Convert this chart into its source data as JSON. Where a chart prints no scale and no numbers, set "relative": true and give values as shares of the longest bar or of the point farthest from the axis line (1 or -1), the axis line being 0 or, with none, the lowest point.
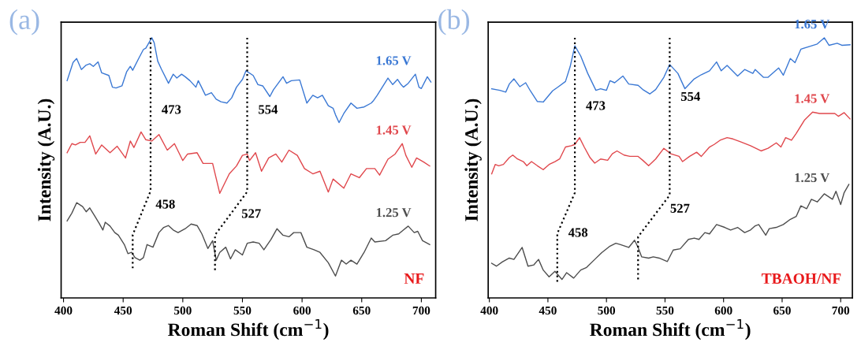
{
  "chart_data": [
    {
      "type": "line",
      "title": "(a)",
      "xlabel": "Roman Shift (cm$^{−1}$)",
      "ylabel": "Intensity (A.U.)",
      "relative": true,
      "xlim": [
        398,
        712
      ],
      "xticks": [
        400,
        450,
        500,
        550,
        600,
        650,
        700
      ],
      "grid": false,
      "legend": false,
      "series": [
        {
          "name": "1.65 V",
          "color": "#3a78d4",
          "x": [
            403,
            408,
            411,
            415,
            419,
            422,
            425,
            429,
            432,
            438,
            441,
            444,
            449,
            453,
            456,
            458,
            463,
            467,
            469,
            474,
            476,
            479,
            482,
            488,
            492,
            495,
            499,
            502,
            506,
            511,
            513,
            519,
            524,
            528,
            532,
            537,
            541,
            545,
            550,
            553,
            559,
            563,
            567,
            573,
            576,
            584,
            587,
            591,
            598,
            604,
            609,
            613,
            617,
            622,
            626,
            628,
            631,
            635,
            641,
            646,
            652,
            658,
            660,
            663,
            672,
            676,
            680,
            683,
            685,
            689,
            695,
            698,
            700,
            705,
            708
          ],
          "values": [
            0.835,
            0.905,
            0.92,
            0.878,
            0.895,
            0.9,
            0.89,
            0.907,
            0.865,
            0.855,
            0.81,
            0.807,
            0.815,
            0.87,
            0.89,
            0.875,
            0.92,
            0.955,
            0.96,
            1.0,
            0.981,
            0.91,
            0.88,
            0.825,
            0.86,
            0.845,
            0.86,
            0.85,
            0.835,
            0.81,
            0.835,
            0.779,
            0.789,
            0.764,
            0.754,
            0.749,
            0.769,
            0.81,
            0.84,
            0.873,
            0.855,
            0.82,
            0.815,
            0.774,
            0.8,
            0.85,
            0.825,
            0.835,
            0.838,
            0.749,
            0.779,
            0.769,
            0.779,
            0.739,
            0.729,
            0.704,
            0.674,
            0.709,
            0.749,
            0.729,
            0.734,
            0.749,
            0.759,
            0.779,
            0.845,
            0.82,
            0.84,
            0.82,
            0.81,
            0.825,
            0.86,
            0.81,
            0.805,
            0.85,
            0.83
          ]
        },
        {
          "name": "1.45 V",
          "color": "#e0474c",
          "x": [
            403,
            407,
            410,
            414,
            418,
            422,
            427,
            432,
            439,
            445,
            452,
            456,
            459,
            465,
            469,
            474,
            480,
            487,
            493,
            500,
            504,
            512,
            517,
            525,
            531,
            539,
            545,
            550,
            554,
            556,
            561,
            566,
            572,
            578,
            583,
            589,
            596,
            602,
            609,
            615,
            622,
            626,
            635,
            641,
            648,
            654,
            661,
            665,
            672,
            678,
            684,
            687,
            692,
            696,
            702,
            707
          ],
          "values": [
            0.558,
            0.593,
            0.588,
            0.598,
            0.598,
            0.623,
            0.553,
            0.588,
            0.558,
            0.583,
            0.538,
            0.603,
            0.578,
            0.638,
            0.608,
            0.603,
            0.628,
            0.568,
            0.593,
            0.528,
            0.553,
            0.558,
            0.517,
            0.517,
            0.402,
            0.477,
            0.507,
            0.548,
            0.553,
            0.528,
            0.558,
            0.487,
            0.538,
            0.553,
            0.522,
            0.568,
            0.548,
            0.497,
            0.477,
            0.487,
            0.407,
            0.457,
            0.422,
            0.477,
            0.462,
            0.497,
            0.497,
            0.472,
            0.533,
            0.553,
            0.593,
            0.548,
            0.502,
            0.538,
            0.522,
            0.507
          ]
        },
        {
          "name": "1.25 V",
          "color": "#4d4d4d",
          "x": [
            403,
            407,
            411,
            416,
            419,
            422,
            426,
            430,
            433,
            435,
            439,
            443,
            446,
            451,
            454,
            457,
            460,
            464,
            467,
            470,
            475,
            480,
            484,
            488,
            492,
            496,
            502,
            507,
            512,
            516,
            521,
            525,
            528,
            531,
            536,
            540,
            544,
            550,
            554,
            559,
            564,
            568,
            574,
            579,
            584,
            589,
            593,
            599,
            604,
            610,
            615,
            622,
            628,
            633,
            637,
            641,
            646,
            652,
            658,
            661,
            670,
            676,
            681,
            685,
            689,
            694,
            697,
            701,
            705,
            707
          ],
          "values": [
            0.296,
            0.326,
            0.366,
            0.351,
            0.331,
            0.346,
            0.316,
            0.286,
            0.261,
            0.291,
            0.276,
            0.251,
            0.241,
            0.205,
            0.17,
            0.175,
            0.155,
            0.145,
            0.155,
            0.205,
            0.195,
            0.251,
            0.271,
            0.278,
            0.261,
            0.251,
            0.266,
            0.284,
            0.278,
            0.246,
            0.19,
            0.22,
            0.145,
            0.175,
            0.195,
            0.15,
            0.185,
            0.165,
            0.21,
            0.215,
            0.21,
            0.185,
            0.225,
            0.266,
            0.241,
            0.235,
            0.251,
            0.251,
            0.195,
            0.185,
            0.175,
            0.135,
            0.084,
            0.145,
            0.13,
            0.145,
            0.13,
            0.175,
            0.23,
            0.215,
            0.22,
            0.241,
            0.246,
            0.261,
            0.276,
            0.251,
            0.256,
            0.22,
            0.21,
            0.205
          ]
        },
        {
          "type": "line",
          "line_style": "dotted",
          "color": "#000000",
          "x": [
            473,
            473,
            458,
            458
          ],
          "values": [
            1.0,
            0.411,
            0.242,
            0.106
          ]
        },
        {
          "type": "line",
          "line_style": "dotted",
          "color": "#000000",
          "x": [
            554,
            554,
            527,
            527
          ],
          "values": [
            1.0,
            0.408,
            0.242,
            0.106
          ]
        }
      ],
      "annotations": [
        {
          "text": "473",
          "x": 473,
          "y": 0.72
        },
        {
          "text": "554",
          "x": 554,
          "y": 0.72
        },
        {
          "text": "458",
          "x": 468,
          "y": 0.356
        },
        {
          "text": "527",
          "x": 540,
          "y": 0.32
        },
        "NF"
      ]
    },
    {
      "type": "line",
      "title": "(b)",
      "xlabel": "Roman Shift (cm$^{−1}$)",
      "ylabel": "Intensity (A.U.)",
      "relative": true,
      "xlim": [
        399,
        710
      ],
      "xticks": [
        400,
        450,
        500,
        550,
        600,
        650,
        700
      ],
      "grid": false,
      "legend": false,
      "series": [
        {
          "name": "1.65 V",
          "color": "#3a78d4",
          "x": [
            402,
            409,
            414,
            417,
            421,
            426,
            431,
            435,
            441,
            446,
            454,
            459,
            465,
            469,
            473,
            478,
            484,
            491,
            495,
            500,
            503,
            507,
            514,
            519,
            527,
            531,
            537,
            542,
            549,
            554,
            561,
            567,
            575,
            581,
            588,
            594,
            598,
            603,
            612,
            618,
            625,
            627,
            634,
            638,
            647,
            651,
            657,
            661,
            666,
            673,
            680,
            686,
            690,
            697,
            701,
            708
          ],
          "values": [
            0.804,
            0.798,
            0.791,
            0.822,
            0.842,
            0.812,
            0.827,
            0.796,
            0.755,
            0.753,
            0.796,
            0.812,
            0.832,
            0.889,
            0.969,
            0.93,
            0.863,
            0.798,
            0.804,
            0.798,
            0.835,
            0.827,
            0.853,
            0.822,
            0.817,
            0.801,
            0.784,
            0.801,
            0.848,
            0.897,
            0.863,
            0.804,
            0.842,
            0.858,
            0.873,
            0.907,
            0.873,
            0.894,
            0.853,
            0.878,
            0.863,
            0.878,
            0.848,
            0.848,
            0.884,
            0.856,
            0.92,
            0.904,
            0.956,
            0.966,
            0.976,
            1.0,
            0.971,
            0.979,
            0.971,
            0.973
          ]
        },
        {
          "name": "1.45 V",
          "color": "#e0474c",
          "x": [
            402,
            405,
            408,
            412,
            417,
            420,
            424,
            429,
            432,
            436,
            441,
            446,
            451,
            456,
            460,
            465,
            470,
            473,
            477,
            481,
            486,
            490,
            495,
            501,
            505,
            509,
            515,
            520,
            527,
            531,
            536,
            542,
            549,
            555,
            562,
            565,
            571,
            577,
            581,
            588,
            592,
            597,
            603,
            608,
            614,
            623,
            632,
            638,
            645,
            649,
            653,
            658,
            662,
            669,
            676,
            682,
            688,
            695,
            698,
            703,
            708
          ],
          "values": [
            0.477,
            0.513,
            0.508,
            0.513,
            0.539,
            0.549,
            0.534,
            0.524,
            0.508,
            0.524,
            0.508,
            0.493,
            0.513,
            0.524,
            0.534,
            0.58,
            0.585,
            0.59,
            0.616,
            0.58,
            0.539,
            0.518,
            0.534,
            0.529,
            0.554,
            0.565,
            0.549,
            0.544,
            0.544,
            0.529,
            0.508,
            0.534,
            0.575,
            0.554,
            0.544,
            0.524,
            0.544,
            0.56,
            0.544,
            0.58,
            0.59,
            0.606,
            0.616,
            0.611,
            0.601,
            0.585,
            0.565,
            0.575,
            0.596,
            0.58,
            0.616,
            0.606,
            0.632,
            0.683,
            0.714,
            0.709,
            0.709,
            0.709,
            0.698,
            0.712,
            0.688
          ]
        },
        {
          "name": "1.25 V",
          "color": "#4d4d4d",
          "x": [
            402,
            406,
            411,
            417,
            421,
            428,
            433,
            438,
            442,
            446,
            451,
            456,
            462,
            466,
            472,
            478,
            483,
            490,
            496,
            503,
            508,
            512,
            516,
            519,
            524,
            527,
            530,
            536,
            540,
            545,
            552,
            557,
            563,
            570,
            575,
            579,
            584,
            588,
            594,
            601,
            606,
            612,
            618,
            623,
            627,
            630,
            636,
            639,
            645,
            651,
            657,
            662,
            666,
            671,
            675,
            680,
            686,
            693,
            696,
            700,
            703,
            707
          ],
          "values": [
            0.133,
            0.122,
            0.138,
            0.153,
            0.148,
            0.194,
            0.122,
            0.127,
            0.148,
            0.107,
            0.081,
            0.102,
            0.071,
            0.097,
            0.076,
            0.107,
            0.117,
            0.148,
            0.174,
            0.199,
            0.21,
            0.205,
            0.199,
            0.194,
            0.222,
            0.194,
            0.158,
            0.153,
            0.158,
            0.153,
            0.14,
            0.184,
            0.189,
            0.225,
            0.23,
            0.225,
            0.251,
            0.246,
            0.282,
            0.271,
            0.261,
            0.271,
            0.251,
            0.261,
            0.277,
            0.282,
            0.241,
            0.266,
            0.271,
            0.282,
            0.302,
            0.313,
            0.354,
            0.343,
            0.379,
            0.369,
            0.4,
            0.379,
            0.41,
            0.359,
            0.405,
            0.436
          ]
        },
        {
          "type": "line",
          "line_style": "dotted",
          "color": "#000000",
          "x": [
            473,
            473,
            458,
            458
          ],
          "values": [
            1.0,
            0.404,
            0.247,
            0.062
          ]
        },
        {
          "type": "line",
          "line_style": "dotted",
          "color": "#000000",
          "x": [
            554,
            554,
            527,
            527
          ],
          "values": [
            1.0,
            0.395,
            0.235,
            0.062
          ]
        }
      ],
      "annotations": [
        {
          "text": "473",
          "x": 473,
          "y": 0.735
        },
        {
          "text": "554",
          "x": 554,
          "y": 0.77
        },
        {
          "text": "458",
          "x": 458,
          "y": 0.247
        },
        {
          "text": "527",
          "x": 545,
          "y": 0.34
        },
        "TBAOH/NF"
      ]
    }
  ]
}
